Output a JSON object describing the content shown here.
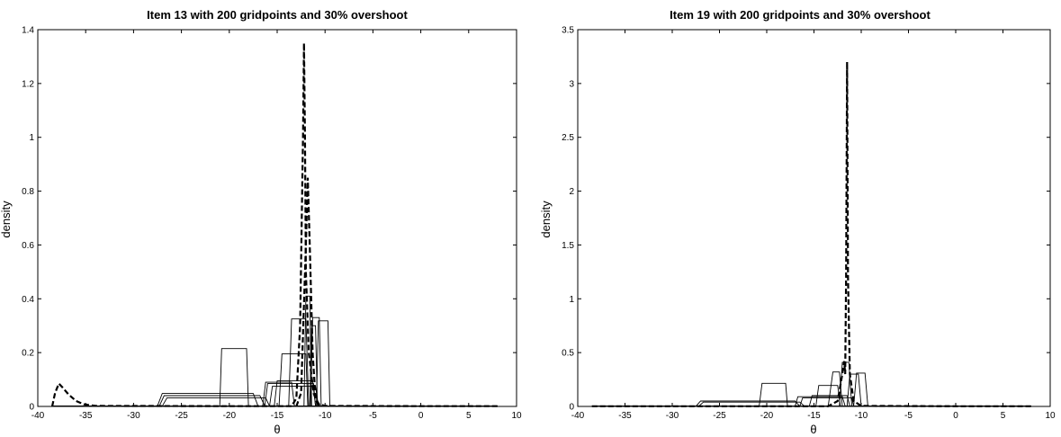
{
  "chart_data": [
    {
      "type": "line",
      "title": "Item 13 with 200 gridpoints and 30% overshoot",
      "xlabel": "θ",
      "ylabel": "density",
      "xlim": [
        -40,
        10
      ],
      "ylim": [
        0,
        1.4
      ],
      "xticks": [
        "-40",
        "-35",
        "-30",
        "-25",
        "-20",
        "-15",
        "-10",
        "-5",
        "0",
        "5",
        "10"
      ],
      "yticks": [
        "0",
        "0.2",
        "0.4",
        "0.6",
        "0.8",
        "1",
        "1.2",
        "1.4"
      ],
      "grid": false,
      "series": [
        {
          "style": "dashed",
          "x": [
            -38.5,
            -38.2,
            -37.8,
            -37.4,
            -36.8,
            -36.0,
            -35.2,
            -34.0,
            -20.0,
            -13.5,
            -13.0,
            -12.6,
            -12.3,
            -12.2,
            -12.1,
            -12.0,
            -11.7,
            -11.2,
            -10.8,
            -10.0,
            0,
            8
          ],
          "y": [
            0,
            0.05,
            0.085,
            0.07,
            0.045,
            0.02,
            0.008,
            0.002,
            0.001,
            0.001,
            0.03,
            0.3,
            1.0,
            1.35,
            1.0,
            0.5,
            0.2,
            0.05,
            0.01,
            0.002,
            0.001,
            0.001
          ]
        },
        {
          "style": "dashed",
          "x": [
            -13.0,
            -12.5,
            -12.0,
            -11.8,
            -11.6,
            -11.3,
            -11.0,
            -10.5
          ],
          "y": [
            0,
            0.05,
            0.6,
            0.85,
            0.6,
            0.2,
            0.03,
            0
          ]
        },
        {
          "style": "solid",
          "x": [
            -38.5,
            -21.0,
            -20.8,
            -18.2,
            -18.0,
            -12.0,
            -11.8,
            8
          ],
          "y": [
            0.002,
            0.002,
            0.215,
            0.215,
            0.002,
            0.002,
            0.001,
            0.001
          ]
        },
        {
          "style": "solid",
          "x": [
            -38.5,
            -27.5,
            -27.0,
            -17.5,
            -17.0,
            8
          ],
          "y": [
            0.002,
            0.002,
            0.048,
            0.048,
            0.002,
            0.002
          ]
        },
        {
          "style": "solid",
          "x": [
            -38.5,
            -27.3,
            -26.8,
            -16.8,
            -16.3,
            8
          ],
          "y": [
            0.002,
            0.002,
            0.04,
            0.04,
            0.002,
            0.002
          ]
        },
        {
          "style": "solid",
          "x": [
            -38.5,
            -27.0,
            -26.5,
            -16.2,
            -15.8,
            8
          ],
          "y": [
            0.001,
            0.001,
            0.032,
            0.032,
            0.001,
            0.001
          ]
        },
        {
          "style": "solid",
          "x": [
            -38.5,
            -16.5,
            -16.2,
            -13.5,
            -13.2,
            8
          ],
          "y": [
            0.002,
            0.002,
            0.09,
            0.09,
            0.002,
            0.002
          ]
        },
        {
          "style": "solid",
          "x": [
            -38.5,
            -16.3,
            -16.0,
            -11.2,
            -11.0,
            8
          ],
          "y": [
            0.002,
            0.002,
            0.085,
            0.085,
            0.002,
            0.002
          ]
        },
        {
          "style": "solid",
          "x": [
            -38.5,
            -15.8,
            -15.5,
            -11.0,
            -10.7,
            8
          ],
          "y": [
            0.001,
            0.001,
            0.075,
            0.075,
            0.001,
            0.001
          ]
        },
        {
          "style": "solid",
          "x": [
            -38.5,
            -15.3,
            -15.0,
            -11.3,
            -11.0,
            8
          ],
          "y": [
            0.002,
            0.002,
            0.095,
            0.095,
            0.002,
            0.002
          ]
        },
        {
          "style": "solid",
          "x": [
            -38.5,
            -14.8,
            -14.5,
            -12.0,
            -11.8,
            8
          ],
          "y": [
            0.002,
            0.002,
            0.195,
            0.195,
            0.002,
            0.002
          ]
        },
        {
          "style": "solid",
          "x": [
            -38.5,
            -13.8,
            -13.5,
            -12.0,
            -11.7,
            8
          ],
          "y": [
            0.002,
            0.002,
            0.325,
            0.325,
            0.002,
            0.002
          ]
        },
        {
          "style": "solid",
          "x": [
            -38.5,
            -12.2,
            -12.0,
            -11.6,
            -11.4,
            8
          ],
          "y": [
            0.002,
            0.002,
            0.41,
            0.41,
            0.002,
            0.002
          ]
        },
        {
          "style": "solid",
          "x": [
            -38.5,
            -11.6,
            -11.4,
            -11.0,
            -10.8,
            8
          ],
          "y": [
            0.002,
            0.002,
            0.3,
            0.3,
            0.002,
            0.002
          ]
        },
        {
          "style": "solid",
          "x": [
            -38.5,
            -10.9,
            -10.7,
            -9.7,
            -9.5,
            8
          ],
          "y": [
            0.002,
            0.002,
            0.318,
            0.318,
            0.002,
            0.002
          ]
        },
        {
          "style": "solid",
          "x": [
            -38.5,
            -11.5,
            -11.3,
            -10.6,
            -10.4,
            8
          ],
          "y": [
            0.001,
            0.001,
            0.33,
            0.33,
            0.001,
            0.001
          ]
        }
      ]
    },
    {
      "type": "line",
      "title": "Item 19 with 200 gridpoints and 30% overshoot",
      "xlabel": "θ",
      "ylabel": "density",
      "xlim": [
        -40,
        10
      ],
      "ylim": [
        0,
        3.5
      ],
      "xticks": [
        "-40",
        "-35",
        "-30",
        "-25",
        "-20",
        "-15",
        "-10",
        "-5",
        "0",
        "5",
        "10"
      ],
      "yticks": [
        "0",
        "0.5",
        "1",
        "1.5",
        "2",
        "2.5",
        "3",
        "3.5"
      ],
      "grid": false,
      "series": [
        {
          "style": "dashed",
          "x": [
            -38.5,
            -20.0,
            -13.5,
            -12.5,
            -12.0,
            -11.8,
            -11.7,
            -11.6,
            -11.5,
            -11.4,
            -11.2,
            -10.8,
            -10.0,
            0,
            8
          ],
          "y": [
            0.002,
            0.002,
            0.002,
            0.05,
            0.3,
            0.42,
            0.3,
            1.2,
            3.2,
            1.2,
            0.3,
            0.05,
            0.005,
            0.002,
            0.002
          ]
        },
        {
          "style": "solid",
          "x": [
            -38.5,
            -20.8,
            -20.5,
            -18.0,
            -17.8,
            8
          ],
          "y": [
            0.002,
            0.002,
            0.215,
            0.215,
            0.002,
            0.002
          ]
        },
        {
          "style": "solid",
          "x": [
            -38.5,
            -27.5,
            -27.0,
            -17.0,
            -16.5,
            8
          ],
          "y": [
            0.002,
            0.002,
            0.05,
            0.05,
            0.002,
            0.002
          ]
        },
        {
          "style": "solid",
          "x": [
            -38.5,
            -27.2,
            -26.7,
            -16.5,
            -16.0,
            8
          ],
          "y": [
            0.002,
            0.002,
            0.04,
            0.04,
            0.002,
            0.002
          ]
        },
        {
          "style": "solid",
          "x": [
            -38.5,
            -17.0,
            -16.7,
            -12.0,
            -11.7,
            8
          ],
          "y": [
            0.002,
            0.002,
            0.09,
            0.09,
            0.002,
            0.002
          ]
        },
        {
          "style": "solid",
          "x": [
            -38.5,
            -16.5,
            -16.2,
            -11.0,
            -10.8,
            8
          ],
          "y": [
            0.002,
            0.002,
            0.08,
            0.08,
            0.002,
            0.002
          ]
        },
        {
          "style": "solid",
          "x": [
            -38.5,
            -15.5,
            -15.2,
            -11.5,
            -11.2,
            8
          ],
          "y": [
            0.002,
            0.002,
            0.1,
            0.1,
            0.002,
            0.002
          ]
        },
        {
          "style": "solid",
          "x": [
            -38.5,
            -14.8,
            -14.5,
            -12.5,
            -12.2,
            8
          ],
          "y": [
            0.002,
            0.002,
            0.195,
            0.195,
            0.002,
            0.002
          ]
        },
        {
          "style": "solid",
          "x": [
            -38.5,
            -13.5,
            -13.0,
            -12.3,
            -12.0,
            8
          ],
          "y": [
            0.002,
            0.002,
            0.32,
            0.32,
            0.002,
            0.002
          ]
        },
        {
          "style": "solid",
          "x": [
            -38.5,
            -12.3,
            -12.0,
            -11.3,
            -11.0,
            8
          ],
          "y": [
            0.002,
            0.002,
            0.41,
            0.41,
            0.002,
            0.002
          ]
        },
        {
          "style": "solid",
          "x": [
            -38.5,
            -11.5,
            -11.2,
            -10.3,
            -10.0,
            8
          ],
          "y": [
            0.002,
            0.002,
            0.3,
            0.3,
            0.002,
            0.002
          ]
        },
        {
          "style": "solid",
          "x": [
            -38.5,
            -10.8,
            -10.5,
            -9.6,
            -9.3,
            8
          ],
          "y": [
            0.002,
            0.002,
            0.31,
            0.31,
            0.002,
            0.002
          ]
        }
      ]
    }
  ]
}
